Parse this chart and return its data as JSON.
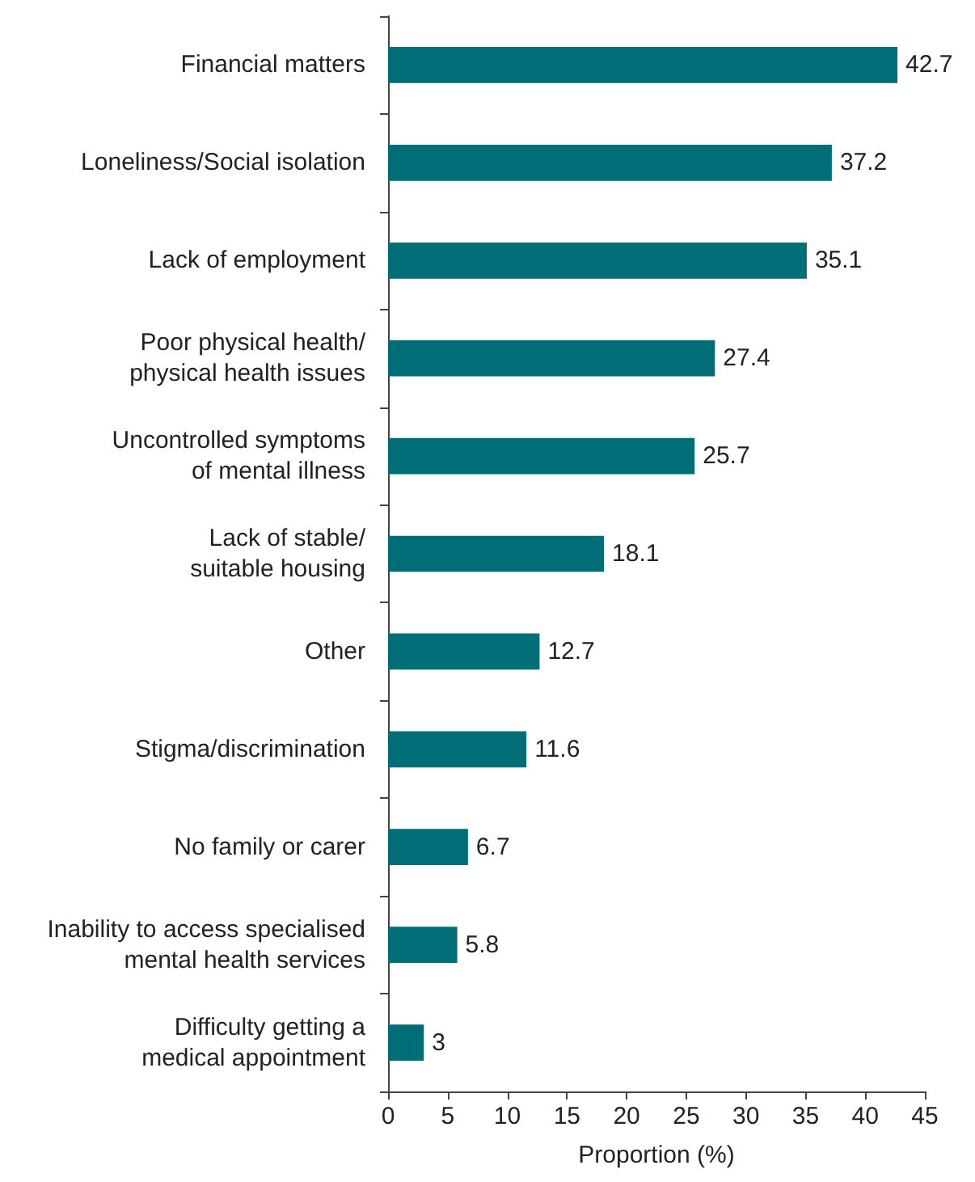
{
  "chart_data": {
    "type": "bar",
    "orientation": "horizontal",
    "xlabel": "Proportion (%)",
    "categories": [
      "Financial matters",
      "Loneliness/Social isolation",
      "Lack of employment",
      "Poor physical health/\nphysical health issues",
      "Uncontrolled symptoms\nof mental illness",
      "Lack of stable/\nsuitable housing",
      "Other",
      "Stigma/discrimination",
      "No family or carer",
      "Inability to access specialised\nmental health services",
      "Difficulty getting a\nmedical appointment"
    ],
    "values": [
      42.7,
      37.2,
      35.1,
      27.4,
      25.7,
      18.1,
      12.7,
      11.6,
      6.7,
      5.8,
      3
    ],
    "color": "#006d77",
    "xlim": [
      0,
      45
    ],
    "xticks": [
      0,
      5,
      10,
      15,
      20,
      25,
      30,
      35,
      40,
      45
    ],
    "data_labels": true
  }
}
